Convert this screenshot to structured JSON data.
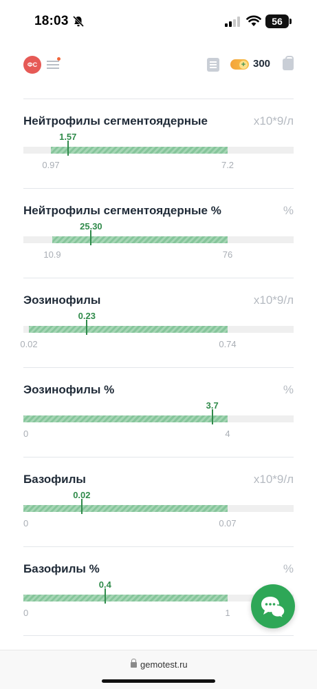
{
  "status_bar": {
    "time": "18:03",
    "battery": "56"
  },
  "header": {
    "avatar_initials": "ФС",
    "coins": "300"
  },
  "indicators": [
    {
      "name": "Нейтрофилы сегментоядерные",
      "unit": "x10*9/л",
      "value": "1.57",
      "value_num": 1.57,
      "min": "0.97",
      "max": "7.2",
      "min_num": 0.97,
      "max_num": 7.2
    },
    {
      "name": "Нейтрофилы сегментоядерные %",
      "unit": "%",
      "value": "25.30",
      "value_num": 25.3,
      "min": "10.9",
      "max": "76",
      "min_num": 10.9,
      "max_num": 76
    },
    {
      "name": "Эозинофилы",
      "unit": "x10*9/л",
      "value": "0.23",
      "value_num": 0.23,
      "min": "0.02",
      "max": "0.74",
      "min_num": 0.02,
      "max_num": 0.74
    },
    {
      "name": "Эозинофилы %",
      "unit": "%",
      "value": "3.7",
      "value_num": 3.7,
      "min": "0",
      "max": "4",
      "min_num": 0,
      "max_num": 4
    },
    {
      "name": "Базофилы",
      "unit": "x10*9/л",
      "value": "0.02",
      "value_num": 0.02,
      "min": "0",
      "max": "0.07",
      "min_num": 0,
      "max_num": 0.07
    },
    {
      "name": "Базофилы %",
      "unit": "%",
      "value": "0.4",
      "value_num": 0.4,
      "min": "0",
      "max": "1",
      "min_num": 0,
      "max_num": 1
    }
  ],
  "browser": {
    "url": "gemotest.ru"
  },
  "colors": {
    "accent_green": "#2f8a4a",
    "range_green": "#86c59b",
    "avatar_red": "#e65a56",
    "fab_green": "#2ea757"
  },
  "icons": [
    "bell-muted-icon",
    "signal-icon",
    "wifi-icon",
    "battery-icon",
    "menu-icon",
    "list-icon",
    "coin-toggle-icon",
    "bag-icon",
    "chat-icon",
    "lock-icon"
  ]
}
